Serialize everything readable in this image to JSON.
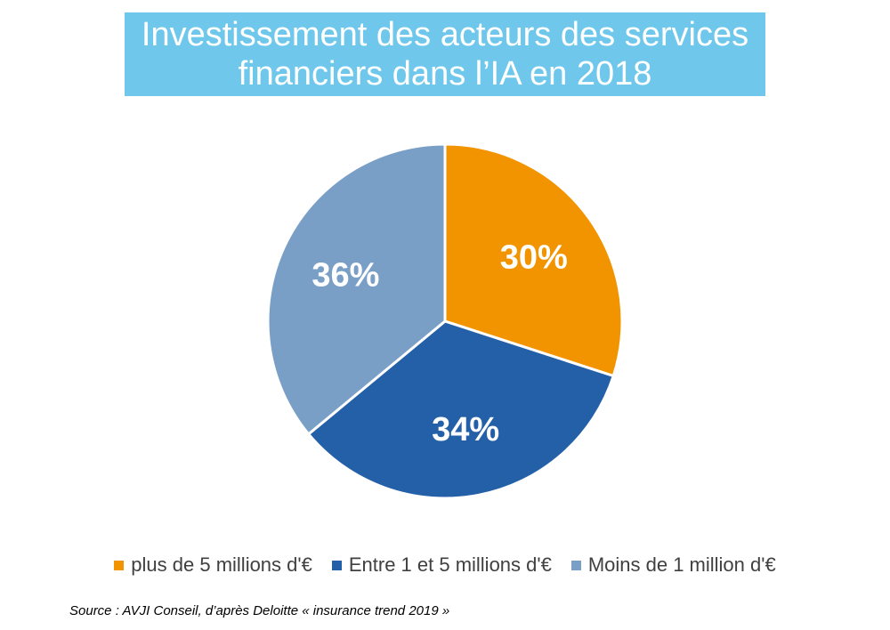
{
  "title": "Investissement  des acteurs des services\nfinanciers dans l’IA en 2018",
  "chart_data": {
    "type": "pie",
    "categories": [
      "plus de 5 millions d'€",
      "Entre 1 et 5 millions d'€",
      "Moins de 1 million d'€"
    ],
    "values": [
      30,
      34,
      36
    ],
    "labels": [
      "30%",
      "34%",
      "36%"
    ],
    "colors": [
      "#f29400",
      "#2360a8",
      "#7a9fc6"
    ],
    "legend_position": "bottom"
  },
  "source": "Source : AVJI Conseil, d’après Deloitte « insurance trend 2019 »"
}
